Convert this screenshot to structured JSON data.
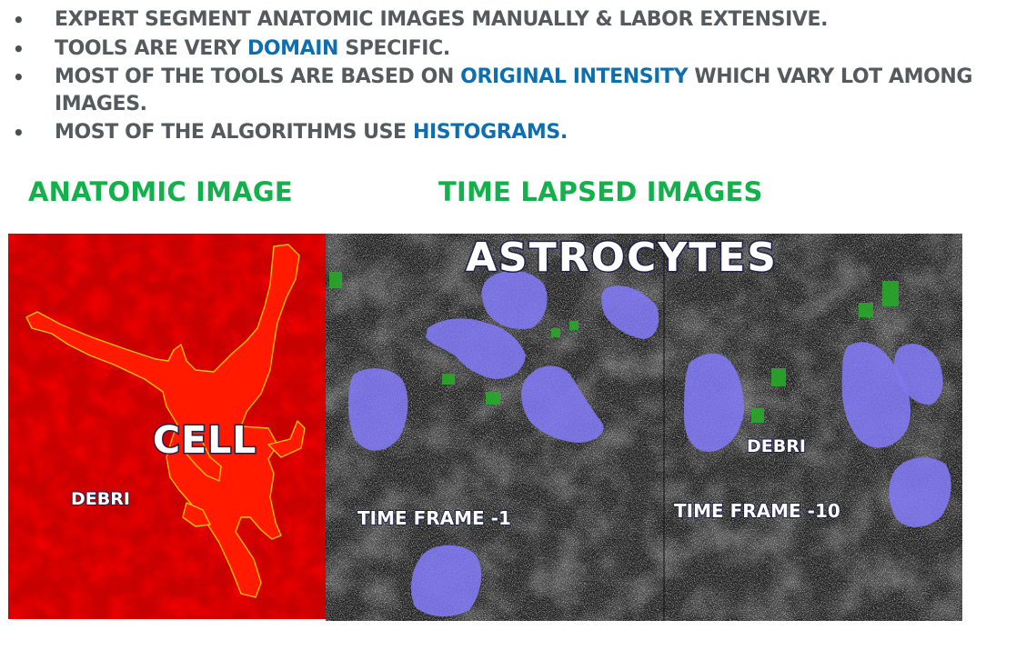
{
  "bullets": [
    {
      "parts": [
        {
          "text": "EXPERT SEGMENT ANATOMIC IMAGES MANUALLY & LABOR EXTENSIVE.",
          "hl": false
        }
      ]
    },
    {
      "parts": [
        {
          "text": "TOOLS ARE VERY ",
          "hl": false
        },
        {
          "text": "DOMAIN",
          "hl": true
        },
        {
          "text": " SPECIFIC.",
          "hl": false
        }
      ]
    },
    {
      "parts": [
        {
          "text": "MOST OF THE TOOLS ARE BASED ON ",
          "hl": false
        },
        {
          "text": "ORIGINAL INTENSITY",
          "hl": true
        },
        {
          "text": " WHICH VARY LOT AMONG IMAGES.",
          "hl": false
        }
      ]
    },
    {
      "parts": [
        {
          "text": "MOST OF THE ALGORITHMS USE ",
          "hl": false
        },
        {
          "text": "HISTOGRAMS.",
          "hl": true
        }
      ]
    }
  ],
  "bullet_symbol": "•",
  "sections": {
    "anatomic_title": "ANATOMIC IMAGE",
    "timelapse_title": "TIME LAPSED IMAGES"
  },
  "anatomic_image": {
    "cell_label": "CELL",
    "debri_label": "DEBRI"
  },
  "timelapse_image": {
    "title_label": "ASTROCYTES",
    "debri_label": "DEBRI",
    "frame1_label": "TIME FRAME -1",
    "frame10_label": "TIME FRAME -10"
  },
  "colors": {
    "bullet_text": "#555a5e",
    "highlight": "#0d6fb0",
    "section_title": "#13b04b",
    "anatomic_bg": "#d40000",
    "cell_fill": "#ff1a00",
    "cell_outline": "#e6c000",
    "blob_fill": "#7a72f0",
    "debri_green": "#28a828"
  }
}
